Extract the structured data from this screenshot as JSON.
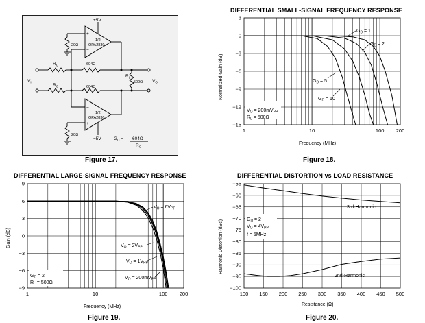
{
  "figures": {
    "fig17": "Figure 17.",
    "fig18": "Figure 18.",
    "fig19": "Figure 19.",
    "fig20": "Figure 20."
  },
  "schematic": {
    "vplus": "+5V",
    "vminus": "−5V",
    "opamp_pin_top": "1/2",
    "opamp_name": "OPA2830",
    "r_bias_top": "20Ω",
    "r_bias_bottom": "20Ω",
    "rf_top": "604Ω",
    "rf_bottom": "604Ω",
    "rg_label": "R",
    "rg_sub": "G",
    "rl_label": "R",
    "rl_sub": "L",
    "rl_value": "500Ω",
    "vi_label": "V",
    "vi_sub": "I",
    "vo_label": "V",
    "vo_sub": "O",
    "gain_eq_lhs": "G",
    "gain_eq_sub": "D",
    "gain_eq_eq": " =",
    "gain_eq_num": "604Ω",
    "gain_eq_den": "R",
    "gain_eq_den_sub": "G",
    "sign_plus": "+",
    "sign_minus": "−"
  },
  "chart_data": [
    {
      "id": "fig18",
      "type": "line",
      "title": "DIFFERENTIAL SMALL-SIGNAL FREQUENCY RESPONSE",
      "xlabel": "Frequency (MHz)",
      "ylabel": "Normalized Gain (dB)",
      "xscale": "log",
      "xlim": [
        1,
        200
      ],
      "ylim": [
        -15,
        3
      ],
      "xticks": [
        1,
        10,
        100,
        200
      ],
      "yticks": [
        3,
        0,
        -3,
        -6,
        -9,
        -12,
        -15
      ],
      "grid": true,
      "series": [
        {
          "name": "G_D = 1",
          "x": [
            1,
            20,
            40,
            60,
            80,
            100,
            120,
            150,
            180
          ],
          "y": [
            0,
            0,
            -0.2,
            -0.7,
            -1.8,
            -3.5,
            -6,
            -10,
            -15
          ]
        },
        {
          "name": "G_D = 2",
          "x": [
            1,
            15,
            30,
            45,
            60,
            75,
            90,
            110,
            130
          ],
          "y": [
            0,
            0,
            -0.4,
            -1.3,
            -2.8,
            -5,
            -8,
            -12,
            -15
          ]
        },
        {
          "name": "G_D = 5",
          "x": [
            1,
            10,
            20,
            30,
            40,
            50,
            60,
            70,
            80
          ],
          "y": [
            0,
            0,
            -0.7,
            -2.2,
            -4.3,
            -7,
            -10,
            -13,
            -15
          ]
        },
        {
          "name": "G_D = 10",
          "x": [
            1,
            7,
            12,
            17,
            22,
            28,
            33,
            38,
            44
          ],
          "y": [
            0,
            0,
            -0.5,
            -1.8,
            -3.7,
            -7,
            -10,
            -12.5,
            -15
          ]
        }
      ],
      "annotations": [
        {
          "text": "G_D = 1"
        },
        {
          "text": "G_D = 2"
        },
        {
          "text": "G_D = 5"
        },
        {
          "text": "G_D = 10"
        },
        {
          "text": "V_O = 200mV_PP"
        },
        {
          "text": "R_L = 500Ω"
        }
      ]
    },
    {
      "id": "fig19",
      "type": "line",
      "title": "DIFFERENTIAL LARGE-SIGNAL FREQUENCY RESPONSE",
      "xlabel": "Frequency (MHz)",
      "ylabel": "Gain (dB)",
      "xscale": "log",
      "xlim": [
        1,
        200
      ],
      "ylim": [
        -9,
        9
      ],
      "xticks": [
        1,
        10,
        100,
        200
      ],
      "yticks": [
        9,
        6,
        3,
        0,
        -3,
        -6,
        -9
      ],
      "grid": true,
      "series": [
        {
          "name": "V_O = 200mV_PP",
          "x": [
            1,
            20,
            30,
            40,
            50,
            60,
            70,
            80,
            90,
            100,
            110,
            120
          ],
          "y": [
            6,
            6,
            5.9,
            5.6,
            5,
            4,
            2.6,
            0.8,
            -1.3,
            -3.6,
            -6.2,
            -9
          ]
        },
        {
          "name": "V_O = 1V_PP",
          "x": [
            1,
            20,
            30,
            40,
            50,
            60,
            70,
            80,
            90,
            100,
            110,
            117
          ],
          "y": [
            6,
            6,
            5.9,
            5.5,
            4.9,
            3.8,
            2.3,
            0.5,
            -1.7,
            -4.1,
            -6.8,
            -9
          ]
        },
        {
          "name": "V_O = 2V_PP",
          "x": [
            1,
            20,
            30,
            40,
            50,
            60,
            70,
            80,
            90,
            100,
            108,
            114
          ],
          "y": [
            6,
            6,
            5.85,
            5.45,
            4.7,
            3.5,
            2,
            0.1,
            -2.1,
            -4.6,
            -7.2,
            -9
          ]
        },
        {
          "name": "V_O = 6V_PP",
          "x": [
            1,
            20,
            30,
            40,
            50,
            60,
            70,
            80,
            90,
            100,
            110
          ],
          "y": [
            6,
            6,
            5.8,
            5.3,
            4.4,
            3.1,
            1.4,
            -0.6,
            -2.9,
            -5.6,
            -9
          ]
        }
      ],
      "annotations": [
        {
          "text": "V_O = 6V_PP"
        },
        {
          "text": "V_O = 2V_PP"
        },
        {
          "text": "V_O = 1V_PP"
        },
        {
          "text": "V_O = 200mV_PP"
        },
        {
          "text": "G_D = 2"
        },
        {
          "text": "R_L = 500Ω"
        }
      ]
    },
    {
      "id": "fig20",
      "type": "line",
      "title": "DIFFERENTIAL DISTORTION vs LOAD RESISTANCE",
      "xlabel": "Resistance (Ω)",
      "ylabel": "Harmonic Distortion (dBc)",
      "xscale": "linear",
      "xlim": [
        100,
        500
      ],
      "ylim": [
        -100,
        -55
      ],
      "xticks": [
        100,
        150,
        200,
        250,
        300,
        350,
        400,
        450,
        500
      ],
      "yticks": [
        -55,
        -60,
        -65,
        -70,
        -75,
        -80,
        -85,
        -90,
        -95,
        -100
      ],
      "grid": true,
      "series": [
        {
          "name": "3rd-Harmonic",
          "x": [
            100,
            150,
            200,
            250,
            300,
            350,
            400,
            450,
            500
          ],
          "y": [
            -55.5,
            -56.8,
            -58,
            -59.2,
            -60.3,
            -61.2,
            -62,
            -62.6,
            -63.2
          ]
        },
        {
          "name": "2nd-Harmonic",
          "x": [
            100,
            130,
            160,
            190,
            220,
            250,
            300,
            350,
            400,
            450,
            500
          ],
          "y": [
            -93.8,
            -94.5,
            -95,
            -95,
            -94.6,
            -93.8,
            -92,
            -89.8,
            -88.5,
            -87.5,
            -87
          ]
        }
      ],
      "annotations": [
        {
          "text": "3rd-Harmonic"
        },
        {
          "text": "2nd-Harmonic"
        },
        {
          "text": "G_D = 2"
        },
        {
          "text": "V_O = 4V_PP"
        },
        {
          "text": "f = 5MHz"
        }
      ]
    }
  ],
  "labels": {
    "fig18_title": "DIFFERENTIAL SMALL-SIGNAL FREQUENCY RESPONSE",
    "fig19_title": "DIFFERENTIAL LARGE-SIGNAL FREQUENCY RESPONSE",
    "fig20_title": "DIFFERENTIAL DISTORTION vs LOAD RESISTANCE",
    "fig18_xlabel": "Frequency (MHz)",
    "fig18_ylabel": "Normalized Gain (dB)",
    "fig19_xlabel": "Frequency (MHz)",
    "fig19_ylabel": "Gain (dB)",
    "fig20_xlabel": "Resistance (Ω)",
    "fig20_ylabel": "Harmonic Distortion (dBc)",
    "fig18_gd1": "G",
    "fig18_gd1_tail": " = 1",
    "fig18_gd2_tail": " = 2",
    "fig18_gd5_tail": " = 5",
    "fig18_gd10_tail": " = 10",
    "sub_D": "D",
    "sub_O": "O",
    "sub_L": "L",
    "sub_PP": "PP",
    "V": "V",
    "R": "R",
    "G": "G",
    "vo200_tail": " = 200mV",
    "rl500_tail": " = 500Ω",
    "vo6_tail": " = 6V",
    "vo2_tail": " = 2V",
    "vo1_tail": " = 1V",
    "gd2_tail": " = 2",
    "vo4_tail": " = 4V",
    "f5": "f = 5MHz",
    "h3": "3rd-Harmonic",
    "h2": "2nd-Harmonic"
  }
}
